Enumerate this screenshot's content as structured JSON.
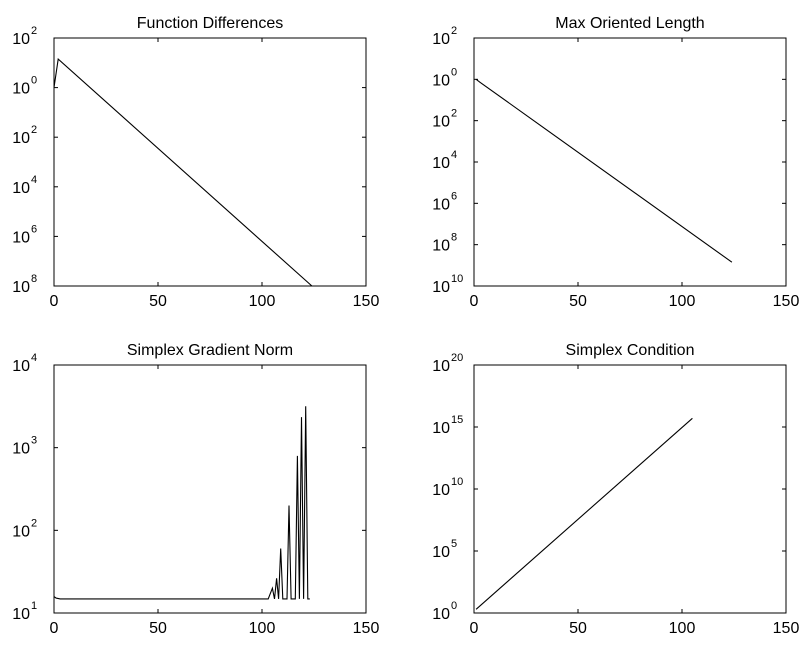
{
  "chart_data": [
    {
      "type": "line",
      "title": "Function Differences",
      "xlabel": "",
      "ylabel": "",
      "xlim": [
        0,
        150
      ],
      "x_ticks": [
        {
          "value": 0,
          "label": "0"
        },
        {
          "value": 50,
          "label": "50"
        },
        {
          "value": 100,
          "label": "100"
        },
        {
          "value": 150,
          "label": "150"
        }
      ],
      "y_scale": "log",
      "ylim_exp": [
        -8,
        2
      ],
      "y_ticks": [
        {
          "exp": 2,
          "base": "10",
          "sup": "2"
        },
        {
          "exp": 0,
          "base": "10",
          "sup": "0"
        },
        {
          "exp": -2,
          "base": "10",
          "sup": "2"
        },
        {
          "exp": -4,
          "base": "10",
          "sup": "4"
        },
        {
          "exp": -6,
          "base": "10",
          "sup": "6"
        },
        {
          "exp": -8,
          "base": "10",
          "sup": "8"
        }
      ],
      "series": [
        {
          "x": [
            0,
            2,
            124
          ],
          "y_exp": [
            0.0,
            1.15,
            -8.0
          ]
        }
      ],
      "grid": false
    },
    {
      "type": "line",
      "title": "Max Oriented Length",
      "xlabel": "",
      "ylabel": "",
      "xlim": [
        0,
        150
      ],
      "x_ticks": [
        {
          "value": 0,
          "label": "0"
        },
        {
          "value": 50,
          "label": "50"
        },
        {
          "value": 100,
          "label": "100"
        },
        {
          "value": 150,
          "label": "150"
        }
      ],
      "y_scale": "log",
      "ylim_exp": [
        -10,
        2
      ],
      "y_ticks": [
        {
          "exp": 2,
          "base": "10",
          "sup": "2"
        },
        {
          "exp": 0,
          "base": "10",
          "sup": "0"
        },
        {
          "exp": -2,
          "base": "10",
          "sup": "2"
        },
        {
          "exp": -4,
          "base": "10",
          "sup": "4"
        },
        {
          "exp": -6,
          "base": "10",
          "sup": "6"
        },
        {
          "exp": -8,
          "base": "10",
          "sup": "8"
        },
        {
          "exp": -10,
          "base": "10",
          "sup": "10"
        }
      ],
      "series": [
        {
          "x": [
            1,
            3,
            124
          ],
          "y_exp": [
            0.0,
            -0.15,
            -8.85
          ]
        }
      ],
      "grid": false
    },
    {
      "type": "line",
      "title": "Simplex Gradient Norm",
      "xlabel": "",
      "ylabel": "",
      "xlim": [
        0,
        150
      ],
      "x_ticks": [
        {
          "value": 0,
          "label": "0"
        },
        {
          "value": 50,
          "label": "50"
        },
        {
          "value": 100,
          "label": "100"
        },
        {
          "value": 150,
          "label": "150"
        }
      ],
      "y_scale": "log",
      "ylim_exp": [
        1,
        4
      ],
      "y_ticks": [
        {
          "exp": 4,
          "base": "10",
          "sup": "4"
        },
        {
          "exp": 3,
          "base": "10",
          "sup": "3"
        },
        {
          "exp": 2,
          "base": "10",
          "sup": "2"
        },
        {
          "exp": 1,
          "base": "10",
          "sup": "1"
        }
      ],
      "series": [
        {
          "x": [
            0,
            1,
            3,
            103,
            105,
            106,
            107,
            108,
            109,
            110,
            111,
            112,
            113,
            114,
            115,
            116,
            117,
            118,
            119,
            120,
            121,
            122,
            123
          ],
          "y_exp": [
            1.2,
            1.18,
            1.17,
            1.17,
            1.3,
            1.17,
            1.42,
            1.17,
            1.78,
            1.17,
            1.17,
            1.17,
            2.3,
            1.17,
            1.17,
            1.17,
            2.9,
            1.17,
            3.37,
            1.17,
            3.5,
            1.17,
            1.17
          ]
        }
      ],
      "grid": false
    },
    {
      "type": "line",
      "title": "Simplex Condition",
      "xlabel": "",
      "ylabel": "",
      "xlim": [
        0,
        150
      ],
      "x_ticks": [
        {
          "value": 0,
          "label": "0"
        },
        {
          "value": 50,
          "label": "50"
        },
        {
          "value": 100,
          "label": "100"
        },
        {
          "value": 150,
          "label": "150"
        }
      ],
      "y_scale": "log",
      "ylim_exp": [
        0,
        20
      ],
      "y_ticks": [
        {
          "exp": 20,
          "base": "10",
          "sup": "20"
        },
        {
          "exp": 15,
          "base": "10",
          "sup": "15"
        },
        {
          "exp": 10,
          "base": "10",
          "sup": "10"
        },
        {
          "exp": 5,
          "base": "10",
          "sup": "5"
        },
        {
          "exp": 0,
          "base": "10",
          "sup": "0"
        }
      ],
      "series": [
        {
          "x": [
            1,
            105
          ],
          "y_exp": [
            0.3,
            15.7
          ]
        }
      ],
      "grid": false
    }
  ]
}
